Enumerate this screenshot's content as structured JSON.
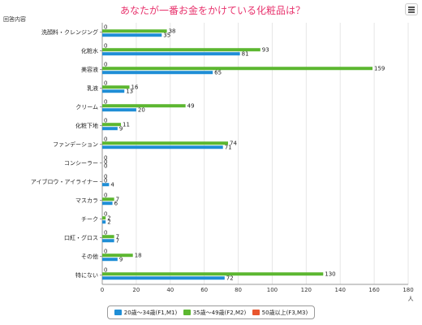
{
  "chart_data": {
    "type": "bar",
    "orientation": "horizontal",
    "title": "あなたが一番お金をかけている化粧品は？",
    "title_color": "#e8336d",
    "ylabel": "回答内容",
    "xlabel": "人",
    "xlim": [
      0,
      180
    ],
    "x_ticks": [
      "0",
      "20",
      "40",
      "60",
      "80",
      "100",
      "120",
      "140",
      "160",
      "180"
    ],
    "grid": true,
    "legend_position": "bottom-center",
    "categories": [
      "洗顔料・クレンジング",
      "化粧水",
      "美容液",
      "乳液",
      "クリーム",
      "化粧下地",
      "ファンデーション",
      "コンシーラー",
      "アイブロウ・アイライナー",
      "マスカラ",
      "チーク",
      "口紅・グロス",
      "その他",
      "特にない"
    ],
    "series": [
      {
        "name": "50歳以上(F3,M3)",
        "color": "#e8552e",
        "values": [
          0,
          0,
          0,
          0,
          0,
          0,
          0,
          0,
          0,
          0,
          0,
          0,
          0,
          0
        ]
      },
      {
        "name": "35歳〜49歳(F2,M2)",
        "color": "#5cb730",
        "values": [
          38,
          93,
          159,
          16,
          49,
          11,
          74,
          0,
          0,
          7,
          2,
          7,
          18,
          130
        ]
      },
      {
        "name": "20歳〜34歳(F1,M1)",
        "color": "#1f8ed6",
        "values": [
          35,
          81,
          65,
          13,
          20,
          9,
          71,
          0,
          4,
          6,
          2,
          7,
          9,
          72
        ]
      }
    ],
    "legend_order": [
      2,
      1,
      0
    ]
  }
}
